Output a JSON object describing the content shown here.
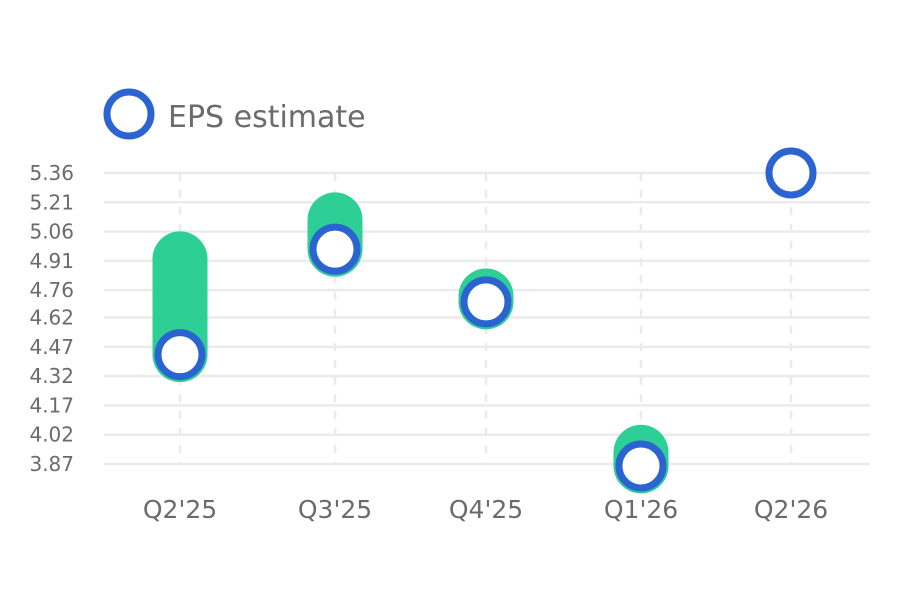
{
  "chart_data": {
    "type": "scatter",
    "categories": [
      "Q2'25",
      "Q3'25",
      "Q4'25",
      "Q1'26",
      "Q2'26"
    ],
    "series": [
      {
        "name": "EPS estimate",
        "values": [
          4.43,
          4.97,
          4.7,
          3.86,
          5.36
        ]
      },
      {
        "values": [
          4.92,
          5.12,
          4.73,
          3.93,
          null
        ]
      }
    ],
    "y_ticks": [
      "3.87",
      "4.02",
      "4.17",
      "4.32",
      "4.47",
      "4.62",
      "4.76",
      "4.91",
      "5.06",
      "5.21",
      "5.36"
    ],
    "ylim": [
      3.87,
      5.36
    ],
    "grid": true,
    "legend": {
      "label": "EPS estimate",
      "position": "top-left"
    },
    "colors": {
      "estimate": "#2b63d1",
      "actual": "#2dcf96",
      "grid": "#ebebeb",
      "text": "#6b6b6b"
    }
  }
}
